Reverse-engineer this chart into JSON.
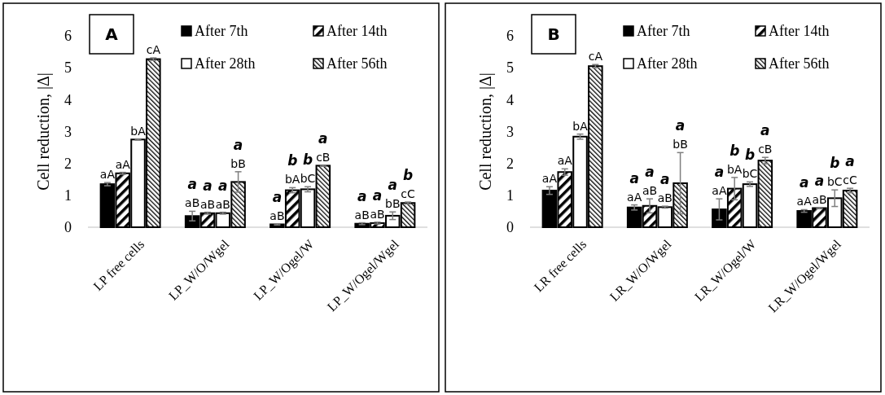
{
  "chart_data": [
    {
      "type": "bar",
      "title": "A",
      "ylabel": "Cell reduction, |Δ|",
      "categories": [
        "LP free cells",
        "LP_W/O/Wgel",
        "LP_W/Ogel/W",
        "LP_W/Ogel/Wgel"
      ],
      "ylim": [
        0,
        6
      ],
      "yticks": [
        0,
        1,
        2,
        3,
        4,
        5,
        6
      ],
      "legend": "top right",
      "grid": false,
      "series": [
        {
          "name": "After 7th",
          "color": "#000000",
          "values": [
            1.35,
            0.35,
            0.09,
            0.11
          ],
          "errors": [
            0.05,
            0.15,
            0.02,
            0.03
          ],
          "value_labels": [
            "aA",
            "a\naB",
            "a\naB",
            "a\naB"
          ]
        },
        {
          "name": "After 14th",
          "color": "#000000",
          "values": [
            1.69,
            0.44,
            1.16,
            0.13
          ],
          "errors": [
            0.03,
            0.03,
            0.08,
            0.03
          ],
          "value_labels": [
            "aA",
            "a\naB",
            "b\nbA",
            "a\naB"
          ]
        },
        {
          "name": "After 28th",
          "color": "#ffffff",
          "values": [
            2.75,
            0.44,
            1.19,
            0.36
          ],
          "errors": [
            0.02,
            0.03,
            0.08,
            0.12
          ],
          "value_labels": [
            "bA",
            "a\naB",
            "b\nbC",
            "a\nbB"
          ]
        },
        {
          "name": "After 56th",
          "color": "#000000",
          "values": [
            5.27,
            1.42,
            1.93,
            0.76
          ],
          "errors": [
            0.04,
            0.32,
            0.02,
            0.03
          ],
          "value_labels": [
            "cA",
            "a\nbB",
            "a\ncB",
            "b\ncC"
          ]
        }
      ]
    },
    {
      "type": "bar",
      "title": "B",
      "ylabel": "Cell reduction, |Δ|",
      "categories": [
        "LR free cells",
        "LR_W/O/Wgel",
        "LR_W/Ogel/W",
        "LR_W/Ogel/Wgel"
      ],
      "ylim": [
        0,
        6
      ],
      "yticks": [
        0,
        1,
        2,
        3,
        4,
        5,
        6
      ],
      "legend": "top right",
      "grid": false,
      "series": [
        {
          "name": "After 7th",
          "color": "#000000",
          "values": [
            1.15,
            0.62,
            0.56,
            0.51
          ],
          "errors": [
            0.12,
            0.08,
            0.33,
            0.04
          ],
          "value_labels": [
            "aA",
            "a\naA",
            "a\naA",
            "a\naA"
          ]
        },
        {
          "name": "After 14th",
          "color": "#000000",
          "values": [
            1.73,
            0.67,
            1.21,
            0.6
          ],
          "errors": [
            0.1,
            0.22,
            0.35,
            0.02
          ],
          "value_labels": [
            "aA",
            "a\naB",
            "b\nbA",
            "a\naB"
          ]
        },
        {
          "name": "After 28th",
          "color": "#ffffff",
          "values": [
            2.84,
            0.63,
            1.35,
            0.91
          ],
          "errors": [
            0.08,
            0.03,
            0.07,
            0.26
          ],
          "value_labels": [
            "bA",
            "a\naB",
            "b\nbC",
            "b\nbC"
          ]
        },
        {
          "name": "After 56th",
          "color": "#000000",
          "values": [
            5.05,
            1.38,
            2.09,
            1.15
          ],
          "errors": [
            0.05,
            0.96,
            0.1,
            0.07
          ],
          "value_labels": [
            "cA",
            "a\nbB",
            "a\ncB",
            "a\ncC"
          ]
        }
      ]
    }
  ]
}
